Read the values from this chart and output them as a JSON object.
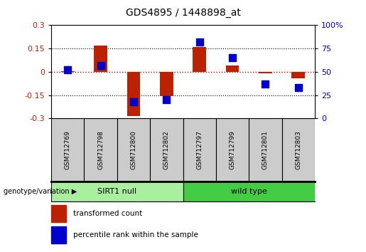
{
  "title": "GDS4895 / 1448898_at",
  "samples": [
    "GSM712769",
    "GSM712798",
    "GSM712800",
    "GSM712802",
    "GSM712797",
    "GSM712799",
    "GSM712801",
    "GSM712803"
  ],
  "red_values": [
    0.005,
    0.17,
    -0.285,
    -0.155,
    0.16,
    0.04,
    -0.01,
    -0.04
  ],
  "blue_values_pct": [
    52,
    57,
    18,
    20,
    82,
    65,
    37,
    33
  ],
  "ylim_left": [
    -0.3,
    0.3
  ],
  "ylim_right": [
    0,
    100
  ],
  "yticks_left": [
    -0.3,
    -0.15,
    0.0,
    0.15,
    0.3
  ],
  "ytick_labels_left": [
    "-0.3",
    "-0.15",
    "0",
    "0.15",
    "0.3"
  ],
  "yticks_right": [
    0,
    25,
    50,
    75,
    100
  ],
  "ytick_labels_right": [
    "0",
    "25",
    "50",
    "75",
    "100%"
  ],
  "sirt1_null_indices": [
    0,
    1,
    2,
    3
  ],
  "wild_type_indices": [
    4,
    5,
    6,
    7
  ],
  "sirt1_null_label": "SIRT1 null",
  "wild_type_label": "wild type",
  "sirt1_null_color": "#AAEEA0",
  "wild_type_color": "#44CC44",
  "sample_cell_color": "#CCCCCC",
  "red_color": "#BB2200",
  "blue_color": "#0000CC",
  "bar_width": 0.4,
  "blue_marker_size": 45,
  "legend_red": "transformed count",
  "legend_blue": "percentile rank within the sample",
  "group_label": "genotype/variation",
  "zero_line_color": "#CC0000",
  "dot_line_color": "#000000"
}
